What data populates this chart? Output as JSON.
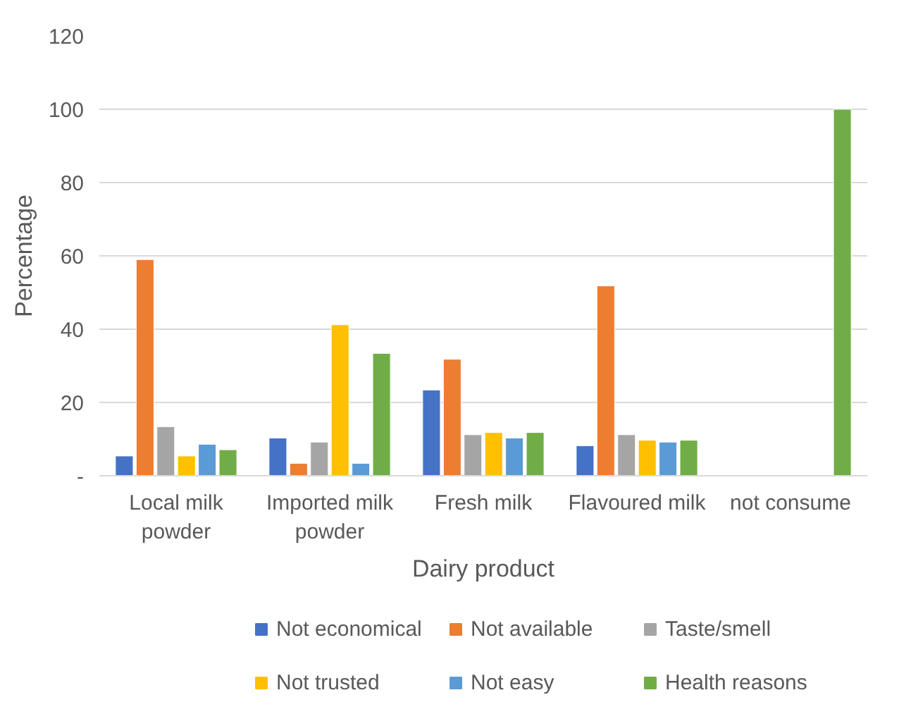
{
  "chart_data": {
    "type": "bar",
    "xlabel": "Dairy product",
    "ylabel": "Percentage",
    "categories": [
      "Local milk powder",
      "Imported milk powder",
      "Fresh milk",
      "Flavoured milk",
      "not consume"
    ],
    "series": [
      {
        "name": "Not economical",
        "color": "#4472c4",
        "values": [
          5.4,
          10.3,
          23.4,
          8.2,
          null
        ]
      },
      {
        "name": "Not available",
        "color": "#ed7d31",
        "values": [
          59,
          3.4,
          31.8,
          51.8,
          null
        ]
      },
      {
        "name": "Taste/smell",
        "color": "#a5a5a5",
        "values": [
          13.4,
          9.2,
          11.2,
          11.2,
          null
        ]
      },
      {
        "name": "Not trusted",
        "color": "#ffc000",
        "values": [
          5.4,
          41.2,
          11.8,
          9.7,
          null
        ]
      },
      {
        "name": "Not easy",
        "color": "#5b9bd5",
        "values": [
          8.6,
          3.4,
          10.3,
          9.2,
          null
        ]
      },
      {
        "name": "Health reasons",
        "color": "#70ad47",
        "values": [
          7.1,
          33.4,
          11.8,
          9.7,
          100
        ]
      }
    ],
    "ylim": [
      0,
      120
    ],
    "yticks": [
      {
        "value": 0,
        "label": "-"
      },
      20,
      40,
      60,
      80,
      100,
      120
    ],
    "grid": "y",
    "legend": "bottom"
  }
}
